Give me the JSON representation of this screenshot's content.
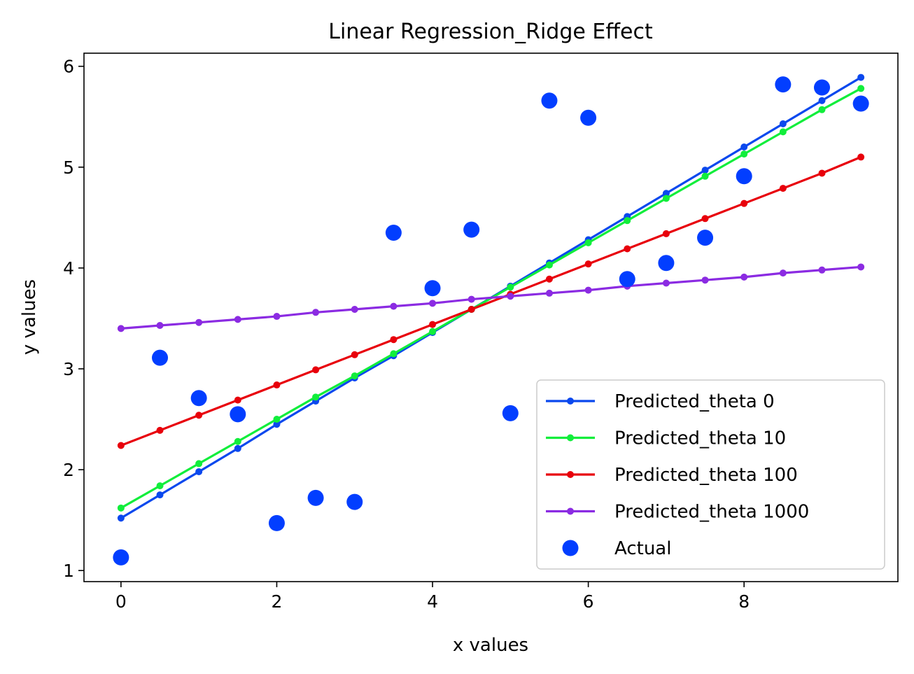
{
  "chart_data": {
    "type": "line",
    "title": "Linear Regression_Ridge Effect",
    "xlabel": "x values",
    "ylabel": "y values",
    "xlim": [
      -0.475,
      9.975
    ],
    "ylim": [
      0.89,
      6.13
    ],
    "x_ticks": [
      0,
      2,
      4,
      6,
      8
    ],
    "y_ticks": [
      1,
      2,
      3,
      4,
      5,
      6
    ],
    "x_tick_labels": [
      "0",
      "2",
      "4",
      "6",
      "8"
    ],
    "y_tick_labels": [
      "1",
      "2",
      "3",
      "4",
      "5",
      "6"
    ],
    "grid": false,
    "legend_position": "lower-right",
    "x": [
      0,
      0.5,
      1,
      1.5,
      2,
      2.5,
      3,
      3.5,
      4,
      4.5,
      5,
      5.5,
      6,
      6.5,
      7,
      7.5,
      8,
      8.5,
      9,
      9.5
    ],
    "series": [
      {
        "name": "Predicted_theta 0",
        "type": "line",
        "color": "#0a48ee",
        "values": [
          1.52,
          1.75,
          1.98,
          2.21,
          2.45,
          2.68,
          2.91,
          3.13,
          3.36,
          3.59,
          3.82,
          4.05,
          4.28,
          4.51,
          4.74,
          4.97,
          5.2,
          5.43,
          5.66,
          5.89
        ]
      },
      {
        "name": "Predicted_theta 10",
        "type": "line",
        "color": "#11ee3b",
        "values": [
          1.62,
          1.84,
          2.06,
          2.28,
          2.5,
          2.72,
          2.93,
          3.15,
          3.37,
          3.59,
          3.81,
          4.03,
          4.25,
          4.47,
          4.69,
          4.91,
          5.13,
          5.35,
          5.57,
          5.78
        ]
      },
      {
        "name": "Predicted_theta 100",
        "type": "line",
        "color": "#e8000b",
        "values": [
          2.24,
          2.39,
          2.54,
          2.69,
          2.84,
          2.99,
          3.14,
          3.29,
          3.44,
          3.59,
          3.74,
          3.89,
          4.04,
          4.19,
          4.34,
          4.49,
          4.64,
          4.79,
          4.94,
          5.1
        ]
      },
      {
        "name": "Predicted_theta 1000",
        "type": "line",
        "color": "#8b2be2",
        "values": [
          3.4,
          3.43,
          3.46,
          3.49,
          3.52,
          3.56,
          3.59,
          3.62,
          3.65,
          3.69,
          3.72,
          3.75,
          3.78,
          3.82,
          3.85,
          3.88,
          3.91,
          3.95,
          3.98,
          4.01
        ]
      },
      {
        "name": "Actual",
        "type": "scatter",
        "color": "#023eff",
        "values": [
          1.13,
          3.11,
          2.71,
          2.55,
          1.47,
          1.72,
          1.68,
          4.35,
          3.8,
          4.38,
          2.56,
          5.66,
          5.49,
          3.89,
          4.05,
          4.3,
          4.91,
          5.82,
          5.79,
          5.63
        ]
      }
    ]
  }
}
